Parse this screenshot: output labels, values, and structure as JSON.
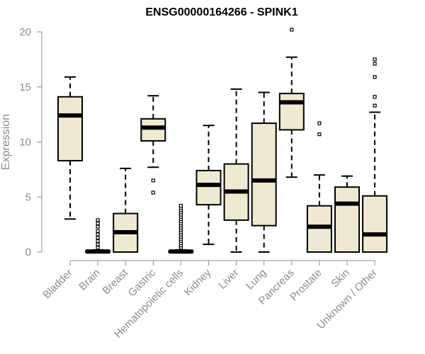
{
  "chart_data": {
    "type": "boxplot",
    "title": "ENSG00000164266 - SPINK1",
    "ylabel": "Expression",
    "xlabel": "",
    "ylim": [
      0,
      20
    ],
    "yticks": [
      0,
      5,
      10,
      15,
      20
    ],
    "grid": false,
    "legend": "none",
    "box_fill": "#efe9d1",
    "categories": [
      "Bladder",
      "Brain",
      "Breast",
      "Gastric",
      "Hematopoietic cells",
      "Kidney",
      "Liver",
      "Lung",
      "Pancreas",
      "Prostate",
      "Skin",
      "Unknown / Other"
    ],
    "boxes": [
      {
        "min": 3.0,
        "q1": 8.3,
        "median": 12.4,
        "q3": 14.1,
        "max": 15.9,
        "outliers": []
      },
      {
        "min": 0.0,
        "q1": 0.0,
        "median": 0.05,
        "q3": 0.1,
        "max": 0.2,
        "outliers": [
          0.4,
          0.7,
          1.0,
          1.3,
          1.6,
          1.9,
          2.3,
          2.6,
          2.9
        ]
      },
      {
        "min": 0.0,
        "q1": 0.0,
        "median": 1.8,
        "q3": 3.5,
        "max": 7.6,
        "outliers": []
      },
      {
        "min": 7.7,
        "q1": 10.1,
        "median": 11.3,
        "q3": 12.1,
        "max": 14.2,
        "outliers": [
          6.5,
          5.4
        ]
      },
      {
        "min": 0.0,
        "q1": 0.0,
        "median": 0.05,
        "q3": 0.1,
        "max": 0.2,
        "outliers": [
          0.4,
          0.6,
          0.8,
          1.0,
          1.2,
          1.4,
          1.6,
          1.8,
          2.0,
          2.2,
          2.4,
          2.6,
          2.8,
          3.0,
          3.2,
          3.4,
          3.6,
          3.8,
          4.0,
          4.2
        ]
      },
      {
        "min": 0.7,
        "q1": 4.3,
        "median": 6.1,
        "q3": 7.4,
        "max": 11.5,
        "outliers": []
      },
      {
        "min": 0.0,
        "q1": 2.9,
        "median": 5.5,
        "q3": 8.0,
        "max": 14.8,
        "outliers": []
      },
      {
        "min": 0.0,
        "q1": 2.4,
        "median": 6.5,
        "q3": 11.7,
        "max": 14.5,
        "outliers": []
      },
      {
        "min": 6.8,
        "q1": 11.1,
        "median": 13.6,
        "q3": 14.4,
        "max": 17.7,
        "outliers": [
          20.2
        ]
      },
      {
        "min": 0.0,
        "q1": 0.0,
        "median": 2.3,
        "q3": 4.2,
        "max": 7.0,
        "outliers": [
          10.7,
          11.7
        ]
      },
      {
        "min": 0.0,
        "q1": 0.0,
        "median": 4.4,
        "q3": 5.9,
        "max": 6.9,
        "outliers": []
      },
      {
        "min": 0.0,
        "q1": 0.0,
        "median": 1.6,
        "q3": 5.1,
        "max": 12.7,
        "outliers": [
          13.3,
          14.1,
          15.9,
          17.1,
          17.5
        ]
      }
    ]
  }
}
